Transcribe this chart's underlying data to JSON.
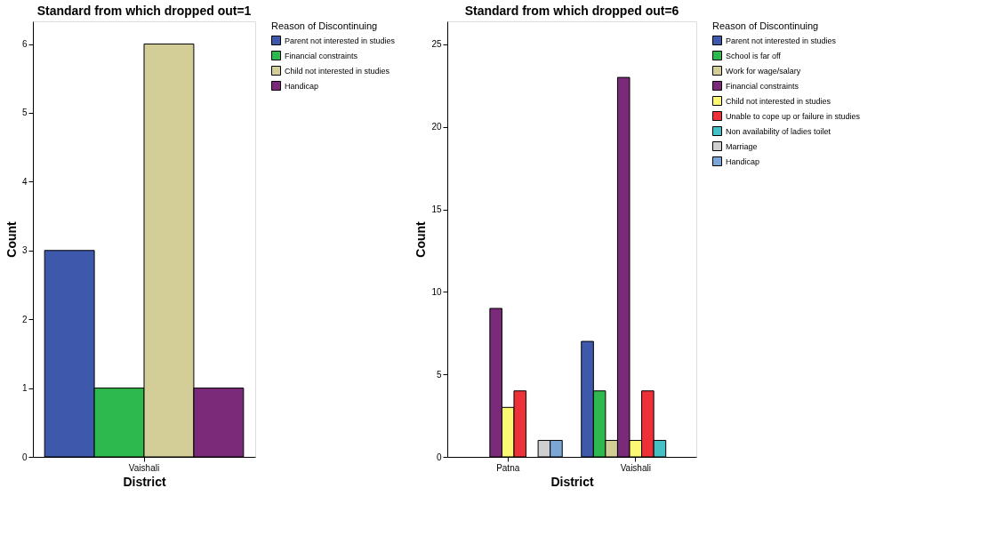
{
  "chart_data": [
    {
      "type": "bar",
      "title": "Standard from which dropped out=1",
      "xlabel": "District",
      "ylabel": "Count",
      "legend_title": "Reason of Discontinuing",
      "categories": [
        "Vaishali"
      ],
      "ylim": [
        0,
        6.33
      ],
      "yticks": [
        0,
        1,
        2,
        3,
        4,
        5,
        6
      ],
      "grid": false,
      "legend": "right",
      "series": [
        {
          "name": "Parent not interested in studies",
          "color": "#3e58ac",
          "values": [
            3
          ]
        },
        {
          "name": "Financial constraints",
          "color": "#2db94d",
          "values": [
            1
          ]
        },
        {
          "name": "Child not interested in studies",
          "color": "#d3ce97",
          "values": [
            6
          ]
        },
        {
          "name": "Handicap",
          "color": "#7b2a7a",
          "values": [
            1
          ]
        }
      ]
    },
    {
      "type": "bar",
      "title": "Standard from which dropped out=6",
      "xlabel": "District",
      "ylabel": "Count",
      "legend_title": "Reason of Discontinuing",
      "categories": [
        "Patna",
        "Vaishali"
      ],
      "ylim": [
        0,
        26.4
      ],
      "yticks": [
        0,
        5,
        10,
        15,
        20,
        25
      ],
      "grid": false,
      "legend": "right",
      "series": [
        {
          "name": "Parent not interested in studies",
          "color": "#3e58ac",
          "values": [
            null,
            7
          ]
        },
        {
          "name": "School is far off",
          "color": "#2db94d",
          "values": [
            null,
            4
          ]
        },
        {
          "name": "Work for wage/salary",
          "color": "#d3ce97",
          "values": [
            null,
            1
          ]
        },
        {
          "name": "Financial constraints",
          "color": "#7b2a7a",
          "values": [
            9,
            23
          ]
        },
        {
          "name": "Child not interested in studies",
          "color": "#fbf873",
          "values": [
            3,
            1
          ]
        },
        {
          "name": "Unable to cope up or failure in studies",
          "color": "#ee3138",
          "values": [
            4,
            4
          ]
        },
        {
          "name": "Non availability of ladies toilet",
          "color": "#45c0c5",
          "values": [
            null,
            1
          ]
        },
        {
          "name": "Marriage",
          "color": "#cfcfcf",
          "values": [
            1,
            null
          ]
        },
        {
          "name": "Handicap",
          "color": "#7ba7d7",
          "values": [
            1,
            null
          ]
        }
      ]
    }
  ]
}
